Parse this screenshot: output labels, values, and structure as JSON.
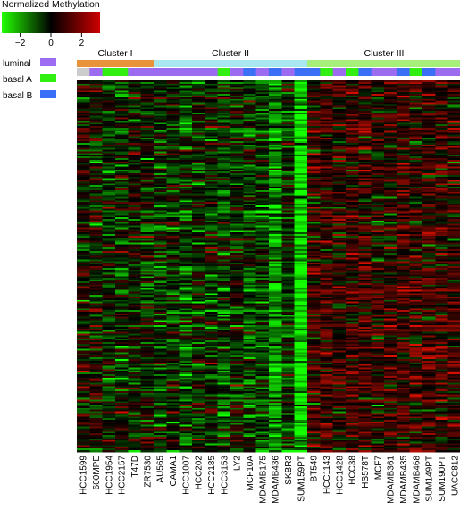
{
  "chart_data": {
    "type": "heatmap",
    "title": "Normalized Methylation",
    "colorbar": {
      "ticks": [
        "−2",
        "0",
        "2"
      ],
      "tick_values": [
        -2,
        0,
        2
      ],
      "range": [
        -3.2,
        3.2
      ],
      "low_color": "#22ff00",
      "mid_color": "#000000",
      "high_color": "#cc0000"
    },
    "clusters": [
      {
        "name": "Cluster I",
        "start": 0,
        "end": 5,
        "color": "#e8923a"
      },
      {
        "name": "Cluster II",
        "start": 6,
        "end": 17,
        "color": "#a8e6f0"
      },
      {
        "name": "Cluster III",
        "start": 18,
        "end": 29,
        "color": "#a6ef7a"
      }
    ],
    "subtype_legend": [
      {
        "label": "luminal",
        "color": "#9b6cf0"
      },
      {
        "label": "basal A",
        "color": "#33ee11"
      },
      {
        "label": "basal B",
        "color": "#3b6ff5"
      }
    ],
    "samples": [
      "HCC1599",
      "600MPE",
      "HCC1954",
      "HCC2157",
      "T47D",
      "ZR7530",
      "AU565",
      "CAMA1",
      "HCC1007",
      "HCC202",
      "HCC2185",
      "HCC3153",
      "LY2",
      "MCF10A",
      "MDAMB175",
      "MDAMB436",
      "SKBR3",
      "SUM159PT",
      "BT549",
      "HCC1143",
      "HCC1428",
      "HCC38",
      "HS578T",
      "MCF7",
      "MDAMB361",
      "MDAMB435",
      "MDAMB468",
      "SUM149PT",
      "SUM190PT",
      "UACC812"
    ],
    "subtypes": [
      "unknown",
      "luminal",
      "basal A",
      "basal A",
      "luminal",
      "luminal",
      "luminal",
      "luminal",
      "luminal",
      "luminal",
      "luminal",
      "basal A",
      "luminal",
      "basal B",
      "luminal",
      "basal B",
      "luminal",
      "basal B",
      "basal B",
      "basal A",
      "luminal",
      "basal A",
      "basal B",
      "luminal",
      "luminal",
      "basal B",
      "basal A",
      "basal B",
      "luminal",
      "luminal"
    ],
    "n_rows": 220,
    "sample_bias": [
      0.1,
      0.0,
      -0.4,
      -0.2,
      -0.1,
      -0.2,
      -0.5,
      -0.3,
      -0.6,
      -0.3,
      -0.3,
      -0.6,
      -0.3,
      -0.6,
      -0.5,
      -1.4,
      -0.4,
      -2.3,
      0.5,
      0.6,
      0.4,
      0.7,
      0.6,
      0.3,
      0.5,
      0.6,
      0.5,
      0.6,
      0.5,
      0.5
    ]
  }
}
